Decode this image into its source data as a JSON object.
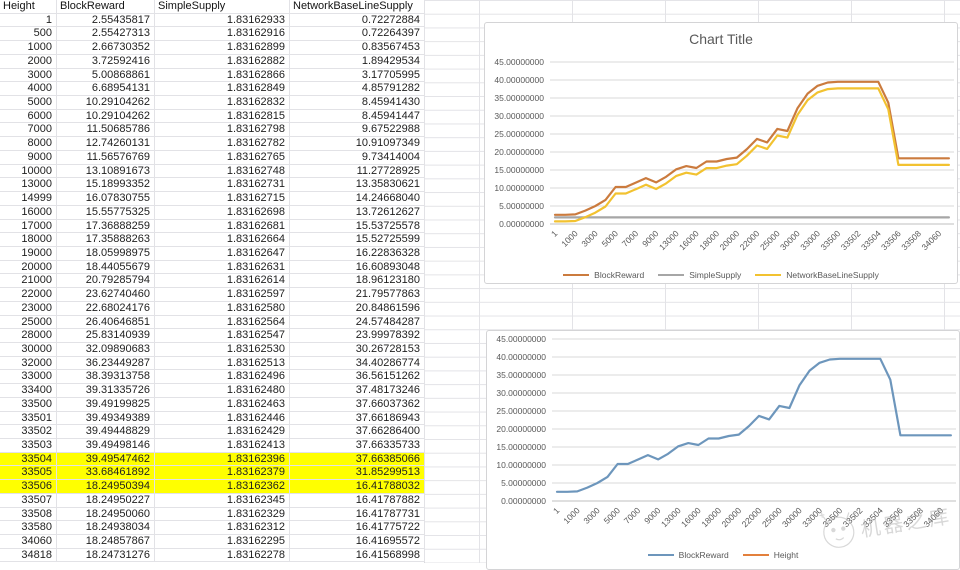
{
  "sheet": {
    "columns": [
      "Height",
      "BlockReward",
      "SimpleSupply",
      "NetworkBaseLineSupply"
    ],
    "rows": [
      [
        "1",
        "2.55435817",
        "1.83162933",
        "0.72272884"
      ],
      [
        "500",
        "2.55427313",
        "1.83162916",
        "0.72264397"
      ],
      [
        "1000",
        "2.66730352",
        "1.83162899",
        "0.83567453"
      ],
      [
        "2000",
        "3.72592416",
        "1.83162882",
        "1.89429534"
      ],
      [
        "3000",
        "5.00868861",
        "1.83162866",
        "3.17705995"
      ],
      [
        "4000",
        "6.68954131",
        "1.83162849",
        "4.85791282"
      ],
      [
        "5000",
        "10.29104262",
        "1.83162832",
        "8.45941430"
      ],
      [
        "6000",
        "10.29104262",
        "1.83162815",
        "8.45941447"
      ],
      [
        "7000",
        "11.50685786",
        "1.83162798",
        "9.67522988"
      ],
      [
        "8000",
        "12.74260131",
        "1.83162782",
        "10.91097349"
      ],
      [
        "9000",
        "11.56576769",
        "1.83162765",
        "9.73414004"
      ],
      [
        "10000",
        "13.10891673",
        "1.83162748",
        "11.27728925"
      ],
      [
        "13000",
        "15.18993352",
        "1.83162731",
        "13.35830621"
      ],
      [
        "14999",
        "16.07830755",
        "1.83162715",
        "14.24668040"
      ],
      [
        "16000",
        "15.55775325",
        "1.83162698",
        "13.72612627"
      ],
      [
        "17000",
        "17.36888259",
        "1.83162681",
        "15.53725578"
      ],
      [
        "18000",
        "17.35888263",
        "1.83162664",
        "15.52725599"
      ],
      [
        "19000",
        "18.05998975",
        "1.83162647",
        "16.22836328"
      ],
      [
        "20000",
        "18.44055679",
        "1.83162631",
        "16.60893048"
      ],
      [
        "21000",
        "20.79285794",
        "1.83162614",
        "18.96123180"
      ],
      [
        "22000",
        "23.62740460",
        "1.83162597",
        "21.79577863"
      ],
      [
        "23000",
        "22.68024176",
        "1.83162580",
        "20.84861596"
      ],
      [
        "25000",
        "26.40646851",
        "1.83162564",
        "24.57484287"
      ],
      [
        "28000",
        "25.83140939",
        "1.83162547",
        "23.99978392"
      ],
      [
        "30000",
        "32.09890683",
        "1.83162530",
        "30.26728153"
      ],
      [
        "32000",
        "36.23449287",
        "1.83162513",
        "34.40286774"
      ],
      [
        "33000",
        "38.39313758",
        "1.83162496",
        "36.56151262"
      ],
      [
        "33400",
        "39.31335726",
        "1.83162480",
        "37.48173246"
      ],
      [
        "33500",
        "39.49199825",
        "1.83162463",
        "37.66037362"
      ],
      [
        "33501",
        "39.49349389",
        "1.83162446",
        "37.66186943"
      ],
      [
        "33502",
        "39.49448829",
        "1.83162429",
        "37.66286400"
      ],
      [
        "33503",
        "39.49498146",
        "1.83162413",
        "37.66335733"
      ],
      [
        "33504",
        "39.49547462",
        "1.83162396",
        "37.66385066"
      ],
      [
        "33505",
        "33.68461892",
        "1.83162379",
        "31.85299513"
      ],
      [
        "33506",
        "18.24950394",
        "1.83162362",
        "16.41788032"
      ],
      [
        "33507",
        "18.24950227",
        "1.83162345",
        "16.41787882"
      ],
      [
        "33508",
        "18.24950060",
        "1.83162329",
        "16.41787731"
      ],
      [
        "33580",
        "18.24938034",
        "1.83162312",
        "16.41775722"
      ],
      [
        "34060",
        "18.24857867",
        "1.83162295",
        "16.41695572"
      ],
      [
        "34818",
        "18.24731276",
        "1.83162278",
        "16.41568998"
      ]
    ],
    "highlighted_row_heights": [
      "33504",
      "33505",
      "33506"
    ],
    "highlight_color": "#FFFF00"
  },
  "chart_data": [
    {
      "type": "line",
      "title": "Chart Title",
      "xlabel": "",
      "ylabel": "",
      "ylim": [
        0,
        45
      ],
      "ytick_step": 5,
      "ytick_decimals": 8,
      "grid": true,
      "legend_position": "bottom",
      "x_tick_every": 2,
      "categories": [
        1,
        500,
        1000,
        2000,
        3000,
        4000,
        5000,
        6000,
        7000,
        8000,
        9000,
        10000,
        13000,
        14999,
        16000,
        17000,
        18000,
        19000,
        20000,
        21000,
        22000,
        23000,
        25000,
        28000,
        30000,
        32000,
        33000,
        33400,
        33500,
        33501,
        33502,
        33503,
        33504,
        33505,
        33506,
        33507,
        33508,
        33580,
        34060,
        34818
      ],
      "series": [
        {
          "name": "BlockReward",
          "color": "#CB7B3E",
          "values": [
            2.55435817,
            2.55427313,
            2.66730352,
            3.72592416,
            5.00868861,
            6.68954131,
            10.29104262,
            10.29104262,
            11.50685786,
            12.74260131,
            11.56576769,
            13.10891673,
            15.18993352,
            16.07830755,
            15.55775325,
            17.36888259,
            17.35888263,
            18.05998975,
            18.44055679,
            20.79285794,
            23.6274046,
            22.68024176,
            26.40646851,
            25.83140939,
            32.09890683,
            36.23449287,
            38.39313758,
            39.31335726,
            39.49199825,
            39.49349389,
            39.49448829,
            39.49498146,
            39.49547462,
            33.68461892,
            18.24950394,
            18.24950227,
            18.2495006,
            18.24938034,
            18.24857867,
            18.24731276
          ]
        },
        {
          "name": "SimpleSupply",
          "color": "#A6A6A6",
          "values": [
            1.83162933,
            1.83162916,
            1.83162899,
            1.83162882,
            1.83162866,
            1.83162849,
            1.83162832,
            1.83162815,
            1.83162798,
            1.83162782,
            1.83162765,
            1.83162748,
            1.83162731,
            1.83162715,
            1.83162698,
            1.83162681,
            1.83162664,
            1.83162647,
            1.83162631,
            1.83162614,
            1.83162597,
            1.8316258,
            1.83162564,
            1.83162547,
            1.8316253,
            1.83162513,
            1.83162496,
            1.8316248,
            1.83162463,
            1.83162446,
            1.83162429,
            1.83162413,
            1.83162396,
            1.83162379,
            1.83162362,
            1.83162345,
            1.83162329,
            1.83162312,
            1.83162295,
            1.83162278
          ]
        },
        {
          "name": "NetworkBaseLineSupply",
          "color": "#F2C230",
          "values": [
            0.72272884,
            0.72264397,
            0.83567453,
            1.89429534,
            3.17705995,
            4.85791282,
            8.4594143,
            8.45941447,
            9.67522988,
            10.91097349,
            9.73414004,
            11.27728925,
            13.35830621,
            14.2466804,
            13.72612627,
            15.53725578,
            15.52725599,
            16.22836328,
            16.60893048,
            18.9612318,
            21.79577863,
            20.84861596,
            24.57484287,
            23.99978392,
            30.26728153,
            34.40286774,
            36.56151262,
            37.48173246,
            37.66037362,
            37.66186943,
            37.662864,
            37.66335733,
            37.66385066,
            31.85299513,
            16.41788032,
            16.41787882,
            16.41787731,
            16.41775722,
            16.41695572,
            16.41568998
          ]
        }
      ]
    },
    {
      "type": "line",
      "title": "",
      "xlabel": "",
      "ylabel": "",
      "ylim": [
        0,
        45
      ],
      "ytick_step": 5,
      "ytick_decimals": 8,
      "grid": true,
      "legend_position": "bottom",
      "x_tick_every": 2,
      "categories": [
        1,
        500,
        1000,
        2000,
        3000,
        4000,
        5000,
        6000,
        7000,
        8000,
        9000,
        10000,
        13000,
        14999,
        16000,
        17000,
        18000,
        19000,
        20000,
        21000,
        22000,
        23000,
        25000,
        28000,
        30000,
        32000,
        33000,
        33400,
        33500,
        33501,
        33502,
        33503,
        33504,
        33505,
        33506,
        33507,
        33508,
        33580,
        34060,
        34818
      ],
      "series": [
        {
          "name": "BlockReward",
          "color": "#6D96BC",
          "values": [
            2.55435817,
            2.55427313,
            2.66730352,
            3.72592416,
            5.00868861,
            6.68954131,
            10.29104262,
            10.29104262,
            11.50685786,
            12.74260131,
            11.56576769,
            13.10891673,
            15.18993352,
            16.07830755,
            15.55775325,
            17.36888259,
            17.35888263,
            18.05998975,
            18.44055679,
            20.79285794,
            23.6274046,
            22.68024176,
            26.40646851,
            25.83140939,
            32.09890683,
            36.23449287,
            38.39313758,
            39.31335726,
            39.49199825,
            39.49349389,
            39.49448829,
            39.49498146,
            39.49547462,
            33.68461892,
            18.24950394,
            18.24950227,
            18.2495006,
            18.24938034,
            18.24857867,
            18.24731276
          ]
        },
        {
          "name": "Height",
          "color": "#E3803C",
          "values": null
        }
      ]
    }
  ],
  "watermark": {
    "text": "机器之库"
  }
}
